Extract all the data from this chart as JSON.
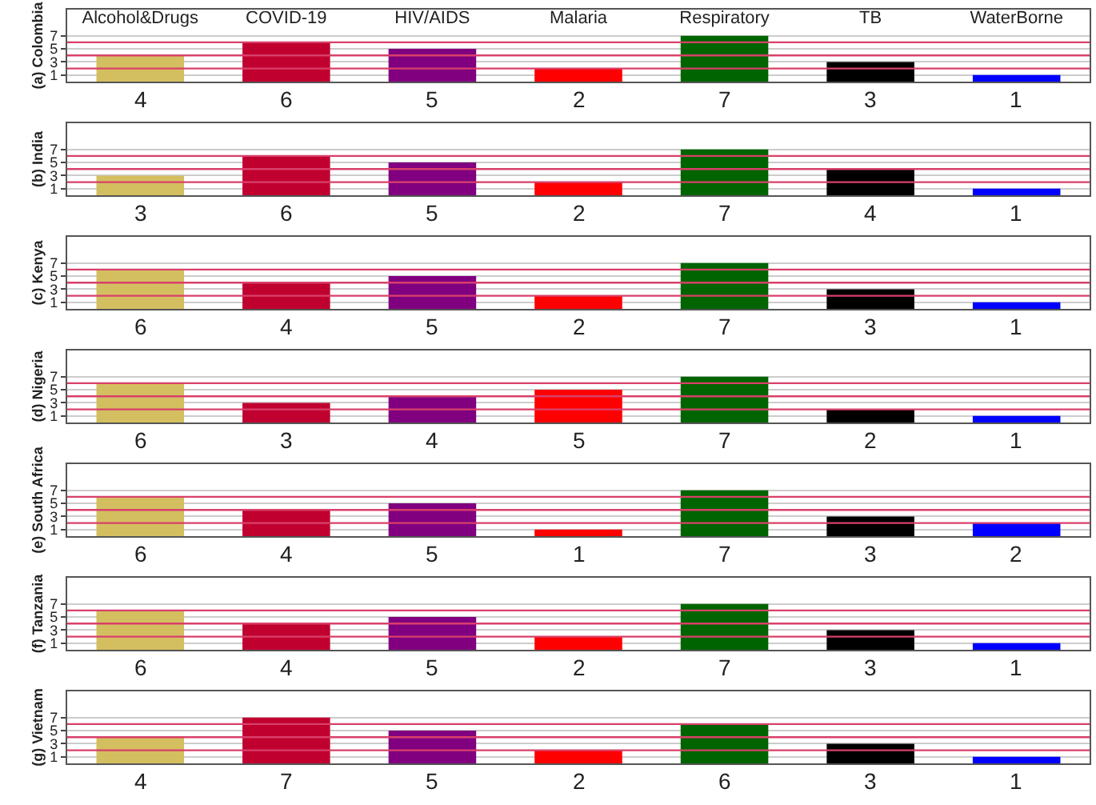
{
  "chart_data": [
    {
      "type": "bar",
      "ylabel": "(a) Colombia",
      "categories": [
        "Alcohol&Drugs",
        "COVID-19",
        "HIV/AIDS",
        "Malaria",
        "Respiratory",
        "TB",
        "WaterBorne"
      ],
      "values": [
        4,
        6,
        5,
        2,
        7,
        3,
        1
      ],
      "colors": [
        "#d4bf60",
        "#c0002f",
        "#800080",
        "#ff0000",
        "#006400",
        "#000000",
        "#0000ff"
      ],
      "ylim": [
        0,
        11
      ],
      "yticks": [
        1,
        3,
        5,
        7
      ],
      "grid": "y",
      "data_labels": true,
      "ref_lines": [
        {
          "axis": "y",
          "value": 2,
          "color": "#d8406a"
        },
        {
          "axis": "y",
          "value": 4,
          "color": "#d8406a"
        },
        {
          "axis": "y",
          "value": 6,
          "color": "#d8406a"
        }
      ]
    },
    {
      "type": "bar",
      "ylabel": "(b) India",
      "categories": [
        null,
        null,
        null,
        null,
        null,
        null,
        null
      ],
      "values": [
        3,
        6,
        5,
        2,
        7,
        4,
        1
      ],
      "colors": [
        "#d4bf60",
        "#c0002f",
        "#800080",
        "#ff0000",
        "#006400",
        "#000000",
        "#0000ff"
      ],
      "ylim": [
        0,
        11
      ],
      "yticks": [
        1,
        3,
        5,
        7
      ],
      "grid": "y",
      "data_labels": true,
      "ref_lines": [
        {
          "axis": "y",
          "value": 2,
          "color": "#d8406a"
        },
        {
          "axis": "y",
          "value": 4,
          "color": "#d8406a"
        },
        {
          "axis": "y",
          "value": 6,
          "color": "#d8406a"
        }
      ]
    },
    {
      "type": "bar",
      "ylabel": "(c) Kenya",
      "categories": [
        null,
        null,
        null,
        null,
        null,
        null,
        null
      ],
      "values": [
        6,
        4,
        5,
        2,
        7,
        3,
        1
      ],
      "colors": [
        "#d4bf60",
        "#c0002f",
        "#800080",
        "#ff0000",
        "#006400",
        "#000000",
        "#0000ff"
      ],
      "ylim": [
        0,
        11
      ],
      "yticks": [
        1,
        3,
        5,
        7
      ],
      "grid": "y",
      "data_labels": true,
      "ref_lines": [
        {
          "axis": "y",
          "value": 2,
          "color": "#d8406a"
        },
        {
          "axis": "y",
          "value": 4,
          "color": "#d8406a"
        },
        {
          "axis": "y",
          "value": 6,
          "color": "#d8406a"
        }
      ]
    },
    {
      "type": "bar",
      "ylabel": "(d) Nigeria",
      "categories": [
        null,
        null,
        null,
        null,
        null,
        null,
        null
      ],
      "values": [
        6,
        3,
        4,
        5,
        7,
        2,
        1
      ],
      "colors": [
        "#d4bf60",
        "#c0002f",
        "#800080",
        "#ff0000",
        "#006400",
        "#000000",
        "#0000ff"
      ],
      "ylim": [
        0,
        11
      ],
      "yticks": [
        1,
        3,
        5,
        7
      ],
      "grid": "y",
      "data_labels": true,
      "ref_lines": [
        {
          "axis": "y",
          "value": 2,
          "color": "#d8406a"
        },
        {
          "axis": "y",
          "value": 4,
          "color": "#d8406a"
        },
        {
          "axis": "y",
          "value": 6,
          "color": "#d8406a"
        }
      ]
    },
    {
      "type": "bar",
      "ylabel": "(e) South Africa",
      "categories": [
        null,
        null,
        null,
        null,
        null,
        null,
        null
      ],
      "values": [
        6,
        4,
        5,
        1,
        7,
        3,
        2
      ],
      "colors": [
        "#d4bf60",
        "#c0002f",
        "#800080",
        "#ff0000",
        "#006400",
        "#000000",
        "#0000ff"
      ],
      "ylim": [
        0,
        11
      ],
      "yticks": [
        1,
        3,
        5,
        7
      ],
      "grid": "y",
      "data_labels": true,
      "ref_lines": [
        {
          "axis": "y",
          "value": 2,
          "color": "#d8406a"
        },
        {
          "axis": "y",
          "value": 4,
          "color": "#d8406a"
        },
        {
          "axis": "y",
          "value": 6,
          "color": "#d8406a"
        }
      ]
    },
    {
      "type": "bar",
      "ylabel": "(f) Tanzania",
      "categories": [
        null,
        null,
        null,
        null,
        null,
        null,
        null
      ],
      "values": [
        6,
        4,
        5,
        2,
        7,
        3,
        1
      ],
      "colors": [
        "#d4bf60",
        "#c0002f",
        "#800080",
        "#ff0000",
        "#006400",
        "#000000",
        "#0000ff"
      ],
      "ylim": [
        0,
        11
      ],
      "yticks": [
        1,
        3,
        5,
        7
      ],
      "grid": "y",
      "data_labels": true,
      "ref_lines": [
        {
          "axis": "y",
          "value": 2,
          "color": "#d8406a"
        },
        {
          "axis": "y",
          "value": 4,
          "color": "#d8406a"
        },
        {
          "axis": "y",
          "value": 6,
          "color": "#d8406a"
        }
      ]
    },
    {
      "type": "bar",
      "ylabel": "(g) Vietnam",
      "categories": [
        null,
        null,
        null,
        null,
        null,
        null,
        null
      ],
      "values": [
        4,
        7,
        5,
        2,
        6,
        3,
        1
      ],
      "colors": [
        "#d4bf60",
        "#c0002f",
        "#800080",
        "#ff0000",
        "#006400",
        "#000000",
        "#0000ff"
      ],
      "ylim": [
        0,
        11
      ],
      "yticks": [
        1,
        3,
        5,
        7
      ],
      "grid": "y",
      "data_labels": true,
      "ref_lines": [
        {
          "axis": "y",
          "value": 2,
          "color": "#d8406a"
        },
        {
          "axis": "y",
          "value": 4,
          "color": "#d8406a"
        },
        {
          "axis": "y",
          "value": 6,
          "color": "#d8406a"
        }
      ]
    }
  ]
}
